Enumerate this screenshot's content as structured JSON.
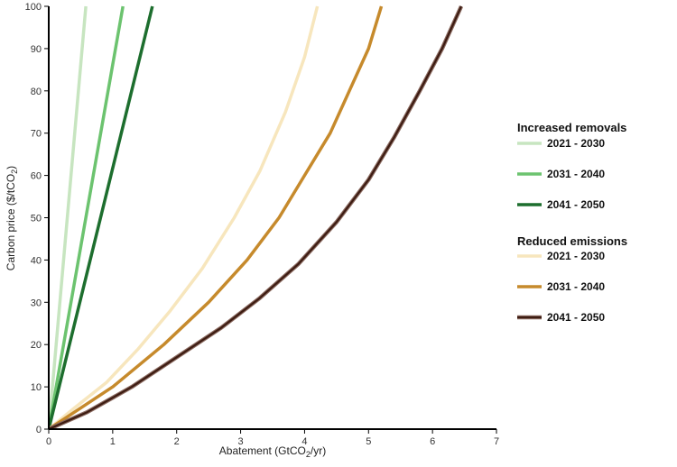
{
  "chart_data": {
    "type": "line",
    "xlabel": "Abatement (GtCO",
    "xlabel_sub": "2",
    "xlabel_end": "/yr)",
    "ylabel": "Carbon price ($/tCO",
    "ylabel_sub": "2",
    "ylabel_end": ")",
    "xlim": [
      0,
      7
    ],
    "ylim": [
      0,
      100
    ],
    "xticks": [
      "0",
      "1",
      "2",
      "3",
      "4",
      "5",
      "6",
      "7"
    ],
    "yticks": [
      "0",
      "10",
      "20",
      "30",
      "40",
      "50",
      "60",
      "70",
      "80",
      "90",
      "100"
    ],
    "grid": false,
    "legend_position": "right",
    "legend_groups": [
      {
        "title": "Increased removals",
        "series": [
          {
            "name": "2021 - 2030",
            "color": "#c7e5c0",
            "casing": "",
            "x": [
              0,
              0.58
            ],
            "y": [
              0,
              100
            ]
          },
          {
            "name": "2031 - 2040",
            "color": "#6cc36f",
            "casing": "",
            "x": [
              0,
              1.16
            ],
            "y": [
              0,
              100
            ]
          },
          {
            "name": "2041 - 2050",
            "color": "#1d6e2e",
            "casing": "",
            "x": [
              0,
              1.62
            ],
            "y": [
              0,
              100
            ]
          }
        ]
      },
      {
        "title": "Reduced emissions",
        "series": [
          {
            "name": "2021 - 2030",
            "color": "#f7e6bd",
            "casing": "",
            "x": [
              0,
              0.4,
              0.9,
              1.4,
              1.9,
              2.4,
              2.9,
              3.3,
              3.7,
              4.0,
              4.2
            ],
            "y": [
              0,
              5,
              11,
              19,
              28,
              38,
              50,
              61,
              75,
              88,
              100
            ]
          },
          {
            "name": "2031 - 2040",
            "color": "#c68a2c",
            "casing": "",
            "x": [
              0,
              0.5,
              1.0,
              1.8,
              2.5,
              3.1,
              3.6,
              4.0,
              4.4,
              4.7,
              5.0,
              5.2
            ],
            "y": [
              0,
              5,
              10,
              20,
              30,
              40,
              50,
              60,
              70,
              80,
              90,
              100
            ]
          },
          {
            "name": "2041 - 2050",
            "color": "#3d1c12",
            "casing": "#8a6a60",
            "x": [
              0,
              0.6,
              1.3,
              2.0,
              2.7,
              3.3,
              3.9,
              4.5,
              5.0,
              5.4,
              5.8,
              6.15,
              6.45
            ],
            "y": [
              0,
              4,
              10,
              17,
              24,
              31,
              39,
              49,
              59,
              69,
              80,
              90,
              100
            ]
          }
        ]
      }
    ]
  }
}
